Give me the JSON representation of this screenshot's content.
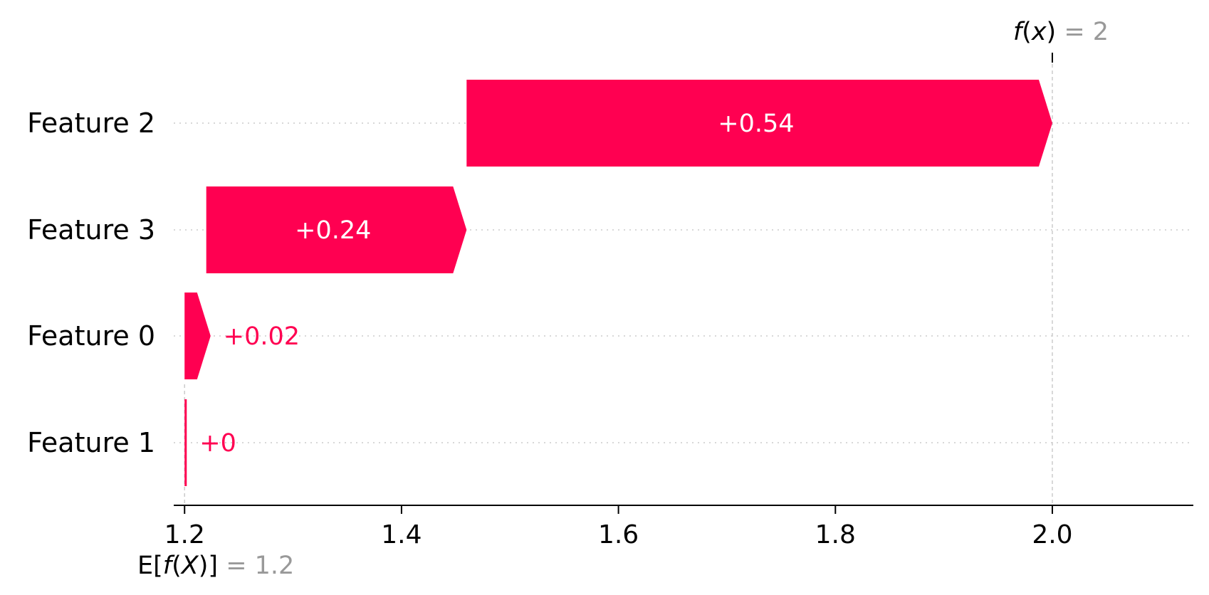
{
  "chart_data": {
    "type": "waterfall",
    "base_value": 1.2,
    "output_value": 2,
    "base_label": {
      "parts": [
        {
          "text": "E[",
          "italic": false
        },
        {
          "text": "f",
          "italic": true
        },
        {
          "text": "(",
          "italic": false
        },
        {
          "text": "X",
          "italic": true
        },
        {
          "text": ")]",
          "italic": false
        }
      ],
      "eq": " = ",
      "value": "1.2"
    },
    "output_label": {
      "parts": [
        {
          "text": "f",
          "italic": true
        },
        {
          "text": "(",
          "italic": false
        },
        {
          "text": "x",
          "italic": true
        },
        {
          "text": ")",
          "italic": false
        }
      ],
      "eq": " = ",
      "value": "2"
    },
    "features": [
      {
        "name": "Feature 2",
        "start": 1.46,
        "value": 0.54,
        "label": "+0.54"
      },
      {
        "name": "Feature 3",
        "start": 1.22,
        "value": 0.24,
        "label": "+0.24"
      },
      {
        "name": "Feature 0",
        "start": 1.2,
        "value": 0.024,
        "label": "+0.02"
      },
      {
        "name": "Feature 1",
        "start": 1.2,
        "value": 0.002,
        "label": "+0"
      }
    ],
    "x_ticks": [
      {
        "value": 1.2,
        "label": "1.2"
      },
      {
        "value": 1.4,
        "label": "1.4"
      },
      {
        "value": 1.6,
        "label": "1.6"
      },
      {
        "value": 1.8,
        "label": "1.8"
      },
      {
        "value": 2.0,
        "label": "2.0"
      }
    ],
    "xlim": [
      1.19,
      2.13
    ],
    "positive_color": "#ff0051",
    "text_gray": "#999999",
    "grid_color": "#cccccc"
  }
}
